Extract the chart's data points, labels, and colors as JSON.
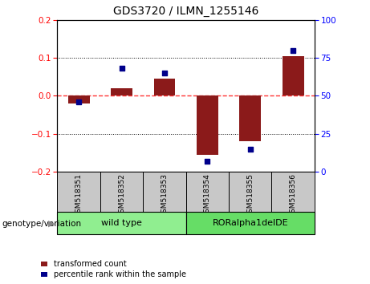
{
  "title": "GDS3720 / ILMN_1255146",
  "samples": [
    "GSM518351",
    "GSM518352",
    "GSM518353",
    "GSM518354",
    "GSM518355",
    "GSM518356"
  ],
  "group_labels": [
    "wild type",
    "RORalpha1delDE"
  ],
  "red_bars": [
    -0.02,
    0.02,
    0.045,
    -0.155,
    -0.12,
    0.105
  ],
  "blue_dots": [
    46,
    68,
    65,
    7,
    15,
    80
  ],
  "ylim_left": [
    -0.2,
    0.2
  ],
  "ylim_right": [
    0,
    100
  ],
  "yticks_left": [
    -0.2,
    -0.1,
    0.0,
    0.1,
    0.2
  ],
  "yticks_right": [
    0,
    25,
    50,
    75,
    100
  ],
  "bar_color": "#8B1A1A",
  "dot_color": "#00008B",
  "zero_line_color": "#FF3333",
  "label_transformed": "transformed count",
  "label_percentile": "percentile rank within the sample",
  "group_row_label": "genotype/variation",
  "bar_width": 0.5,
  "sample_box_color": "#C8C8C8",
  "wt_color": "#90EE90",
  "ror_color": "#66DD66"
}
